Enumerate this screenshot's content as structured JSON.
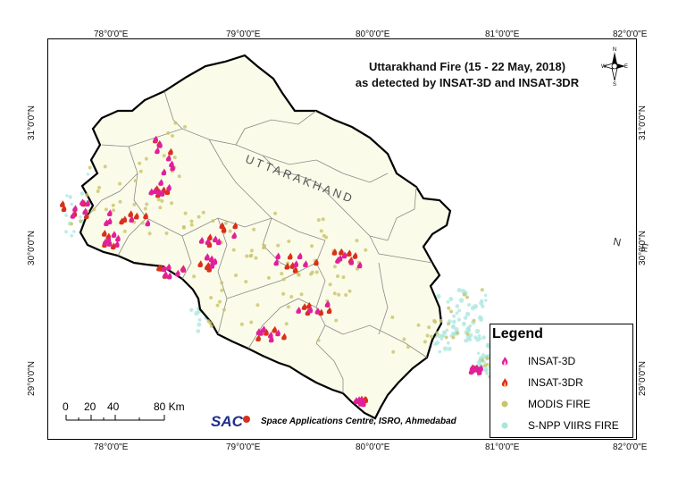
{
  "map": {
    "title_line1": "Uttarakhand Fire (15 - 22 May, 2018)",
    "title_line2": "as detected by INSAT-3D and INSAT-3DR",
    "region_label": "UTTARAKHAND",
    "nepal_label": "N E",
    "top_ticks": [
      "78°0'0\"E",
      "79°0'0\"E",
      "80°0'0\"E",
      "81°0'0\"E",
      "82°0'0\"E"
    ],
    "bottom_ticks": [
      "78°0'0\"E",
      "79°0'0\"E",
      "80°0'0\"E",
      "81°0'0\"E",
      "82°0'0\"E"
    ],
    "left_ticks": [
      "31°0'0\"N",
      "30°0'0\"N",
      "29°0'0\"N"
    ],
    "right_ticks": [
      "31°0'0\"N",
      "30°0'0\"N",
      "29°0'0\"N"
    ],
    "compass": {
      "n": "N",
      "s": "S",
      "e": "E",
      "w": "W"
    }
  },
  "legend": {
    "title": "Legend",
    "items": [
      {
        "label": "INSAT-3D",
        "icon": "pink-fire-icon",
        "color": "#e0209a"
      },
      {
        "label": "INSAT-3DR",
        "icon": "red-fire-icon",
        "color": "#d9301a"
      },
      {
        "label": "MODIS FIRE",
        "icon": "olive-dot-icon",
        "color": "#c9c46a"
      },
      {
        "label": "S-NPP VIIRS FIRE",
        "icon": "cyan-dot-icon",
        "color": "#a8e6dc"
      }
    ]
  },
  "scale": {
    "labels": [
      "0",
      "20",
      "40",
      "80 Km"
    ]
  },
  "credit": {
    "logo_text": "SAC",
    "text": "Space Applications Centre, ISRO, Ahmedabad"
  },
  "colors": {
    "land": "#fbfbe9",
    "boundary": "#000000",
    "district": "#8a8a8a",
    "insat3d": "#e0209a",
    "insat3dr": "#d9301a",
    "modis": "#c9c46a",
    "viirs": "#a8e6dc"
  }
}
